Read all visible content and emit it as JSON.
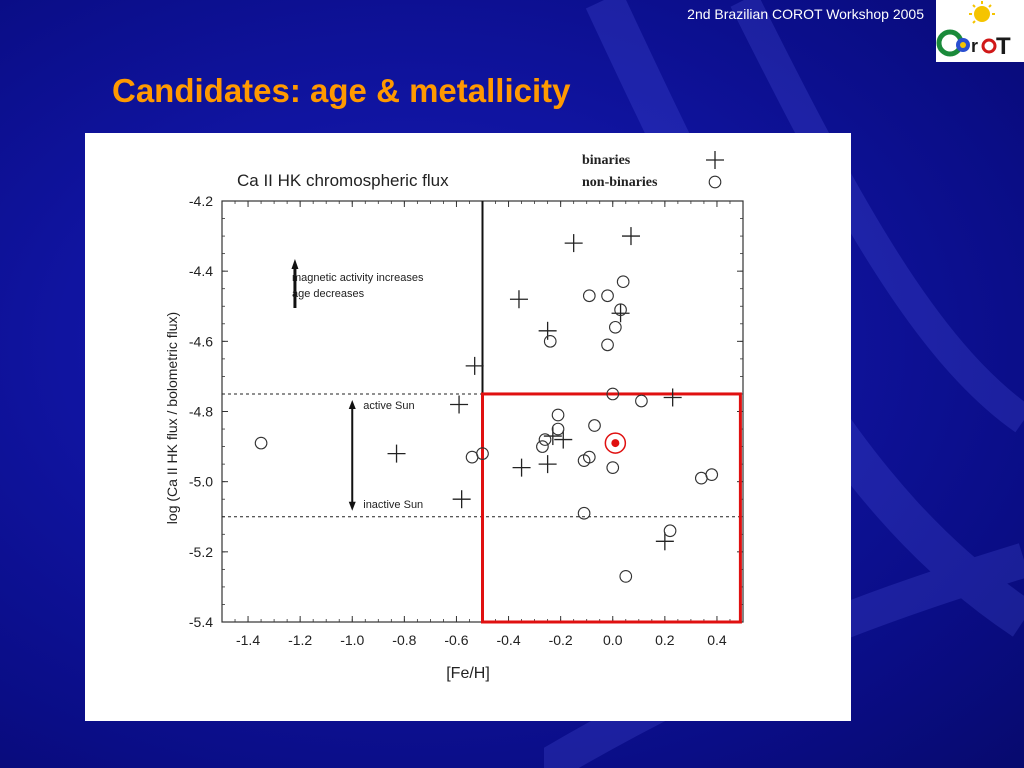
{
  "header": {
    "workshop_label": "2nd Brazilian COROT Workshop 2005",
    "logo_text": "COROT",
    "title": "Candidates: age & metallicity"
  },
  "colors": {
    "background": "#1014a0",
    "title": "#ff9900",
    "highlight_box": "#e01010",
    "sun_marker": "#e01010"
  },
  "chart_data": {
    "type": "scatter",
    "title": "Ca II HK chromospheric flux",
    "xlabel": "[Fe/H]",
    "ylabel": "log (Ca II HK flux / bolometric flux)",
    "xlim": [
      -1.5,
      0.5
    ],
    "ylim": [
      -5.4,
      -4.2
    ],
    "xticks": [
      "-1.4",
      "-1.2",
      "-1.0",
      "-0.8",
      "-0.6",
      "-0.4",
      "-0.2",
      "0.0",
      "0.2",
      "0.4"
    ],
    "yticks": [
      "-4.2",
      "-4.4",
      "-4.6",
      "-4.8",
      "-5.0",
      "-5.2",
      "-5.4"
    ],
    "grid": false,
    "legend_placement": "top-right",
    "legend": [
      {
        "label": "binaries",
        "marker": "plus"
      },
      {
        "label": "non-binaries",
        "marker": "circle"
      }
    ],
    "series": [
      {
        "name": "binaries",
        "marker": "plus",
        "points": [
          [
            -0.15,
            -4.32
          ],
          [
            0.07,
            -4.3
          ],
          [
            -0.36,
            -4.48
          ],
          [
            0.03,
            -4.52
          ],
          [
            -0.25,
            -4.57
          ],
          [
            -0.53,
            -4.67
          ],
          [
            -0.59,
            -4.78
          ],
          [
            0.23,
            -4.76
          ],
          [
            -0.83,
            -4.92
          ],
          [
            -0.23,
            -4.87
          ],
          [
            -0.25,
            -4.95
          ],
          [
            -0.35,
            -4.96
          ],
          [
            -0.58,
            -5.05
          ],
          [
            0.2,
            -5.17
          ],
          [
            -0.19,
            -4.88
          ]
        ]
      },
      {
        "name": "non-binaries",
        "marker": "circle",
        "points": [
          [
            -1.35,
            -4.89
          ],
          [
            0.04,
            -4.43
          ],
          [
            -0.09,
            -4.47
          ],
          [
            -0.02,
            -4.47
          ],
          [
            0.03,
            -4.51
          ],
          [
            0.01,
            -4.56
          ],
          [
            -0.24,
            -4.6
          ],
          [
            -0.02,
            -4.61
          ],
          [
            0.0,
            -4.75
          ],
          [
            0.11,
            -4.77
          ],
          [
            -0.21,
            -4.81
          ],
          [
            -0.07,
            -4.84
          ],
          [
            -0.21,
            -4.85
          ],
          [
            -0.26,
            -4.88
          ],
          [
            -0.27,
            -4.9
          ],
          [
            -0.09,
            -4.93
          ],
          [
            -0.11,
            -4.94
          ],
          [
            -0.54,
            -4.93
          ],
          [
            -0.5,
            -4.92
          ],
          [
            0.0,
            -4.96
          ],
          [
            0.38,
            -4.98
          ],
          [
            0.34,
            -4.99
          ],
          [
            -0.11,
            -5.09
          ],
          [
            0.22,
            -5.14
          ],
          [
            0.05,
            -5.27
          ]
        ]
      }
    ],
    "sun": {
      "x": 0.01,
      "y": -4.89
    },
    "reference_lines": {
      "vertical_x": -0.5,
      "active_sun_y": -4.75,
      "inactive_sun_y": -5.1
    },
    "highlight_region": {
      "x": [
        -0.5,
        0.49
      ],
      "y": [
        -5.4,
        -4.75
      ]
    },
    "annotations": {
      "activity": [
        "magnetic activity increases",
        "age decreases"
      ],
      "active_sun": "active Sun",
      "inactive_sun": "inactive Sun"
    }
  }
}
